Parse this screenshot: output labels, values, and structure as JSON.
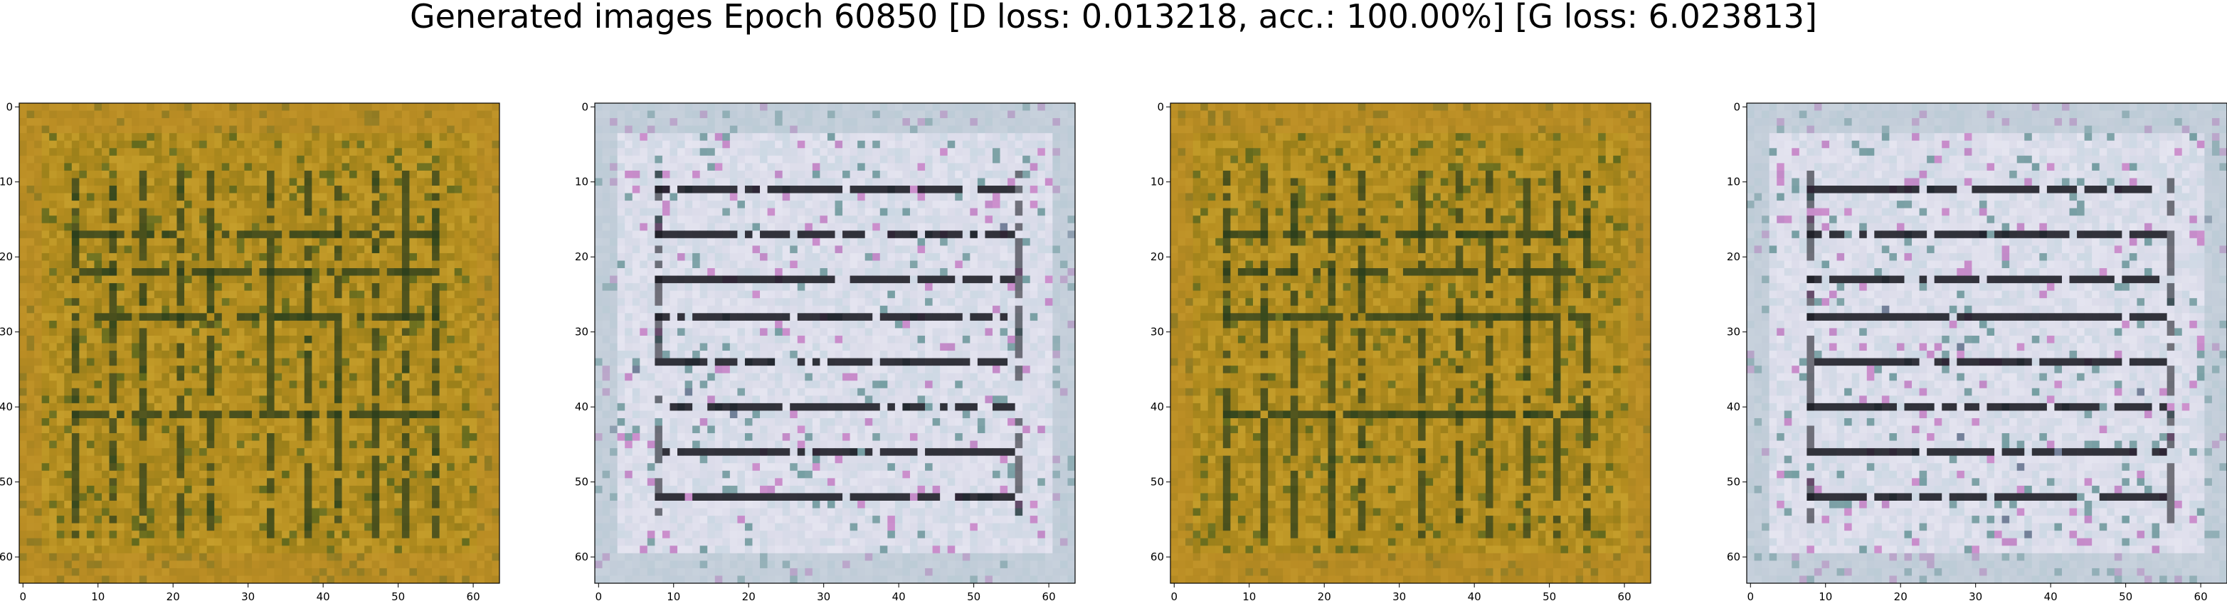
{
  "title": "Generated images Epoch 60850 [D loss: 0.013218, acc.: 100.00%] [G loss: 6.023813]",
  "axes": {
    "x_ticks": [
      "0",
      "10",
      "20",
      "30",
      "40",
      "50",
      "60"
    ],
    "y_ticks": [
      "0",
      "10",
      "20",
      "30",
      "40",
      "50",
      "60"
    ],
    "xlim": [
      0,
      64
    ],
    "ylim": [
      64,
      0
    ]
  },
  "images": [
    {
      "id": "sample-1",
      "palette": "olive-gold",
      "base": "#b58d1f",
      "grid_line": "#243a1c",
      "highlight": "#d8b23a"
    },
    {
      "id": "sample-2",
      "palette": "pale-lavender",
      "base": "#dcdcea",
      "grid_line": "#14141c",
      "highlight": "#b9d4dc"
    },
    {
      "id": "sample-3",
      "palette": "olive-gold",
      "base": "#b58d1f",
      "grid_line": "#243a1c",
      "highlight": "#d8b23a"
    },
    {
      "id": "sample-4",
      "palette": "pale-lavender",
      "base": "#dcdcea",
      "grid_line": "#14141c",
      "highlight": "#b9d4dc"
    }
  ]
}
